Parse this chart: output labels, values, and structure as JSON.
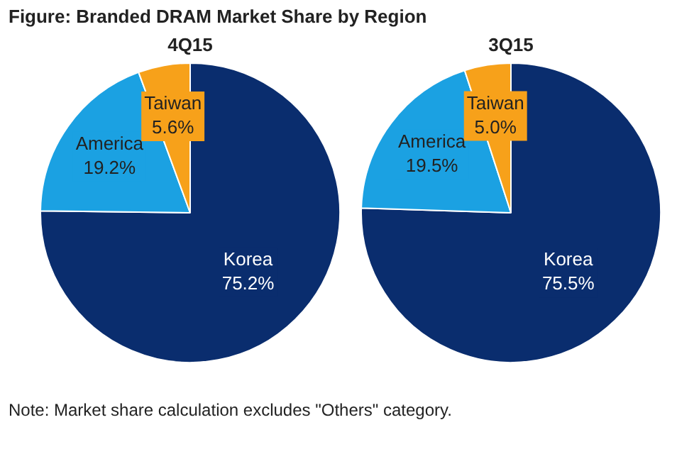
{
  "chart_data": [
    {
      "type": "pie",
      "title": "Figure: Branded DRAM Market Share by Region",
      "subtitle": "4Q15",
      "categories": [
        "Korea",
        "America",
        "Taiwan"
      ],
      "values": [
        75.2,
        19.2,
        5.6
      ],
      "colors": [
        "#0a2d6e",
        "#1ba1e2",
        "#f7a11a"
      ],
      "value_labels": [
        "75.2%",
        "19.2%",
        "5.6%"
      ],
      "legend": false
    },
    {
      "type": "pie",
      "subtitle": "3Q15",
      "categories": [
        "Korea",
        "America",
        "Taiwan"
      ],
      "values": [
        75.5,
        19.5,
        5.0
      ],
      "colors": [
        "#0a2d6e",
        "#1ba1e2",
        "#f7a11a"
      ],
      "value_labels": [
        "75.5%",
        "19.5%",
        "5.0%"
      ],
      "legend": false,
      "annotations": [
        "Note: Market share calculation excludes \"Others\" category."
      ]
    }
  ]
}
